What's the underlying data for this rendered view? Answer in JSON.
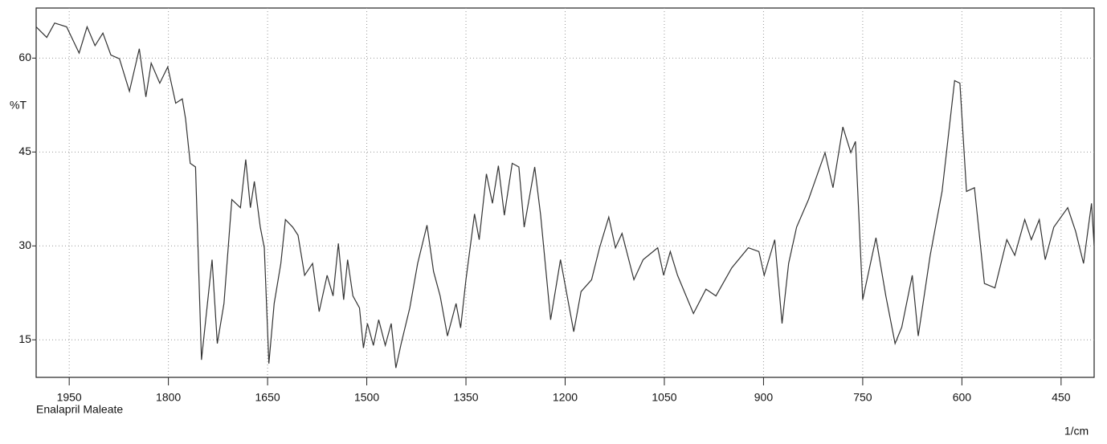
{
  "chart_data": {
    "type": "line",
    "y_label": "%T",
    "x_label": "1/cm",
    "annotation": "Enalapril Maleate",
    "x": [
      2000,
      1984,
      1972,
      1954,
      1935,
      1923,
      1911,
      1899,
      1887,
      1874,
      1859,
      1844,
      1834,
      1826,
      1813,
      1801,
      1789,
      1779,
      1774,
      1767,
      1759,
      1750,
      1734,
      1726,
      1716,
      1704,
      1691,
      1683,
      1676,
      1670,
      1661,
      1655,
      1648,
      1640,
      1630,
      1623,
      1612,
      1604,
      1594,
      1582,
      1572,
      1560,
      1551,
      1543,
      1535,
      1529,
      1521,
      1511,
      1505,
      1499,
      1490,
      1482,
      1472,
      1463,
      1456,
      1448,
      1435,
      1423,
      1409,
      1399,
      1389,
      1378,
      1365,
      1358,
      1350,
      1337,
      1330,
      1319,
      1310,
      1301,
      1292,
      1280,
      1270,
      1262,
      1246,
      1237,
      1222,
      1207,
      1187,
      1176,
      1160,
      1148,
      1134,
      1124,
      1114,
      1096,
      1082,
      1060,
      1051,
      1041,
      1030,
      1006,
      987,
      972,
      948,
      923,
      907,
      899,
      883,
      872,
      862,
      850,
      832,
      807,
      795,
      780,
      768,
      761,
      750,
      730,
      715,
      701,
      691,
      675,
      666,
      648,
      630,
      611,
      603,
      593,
      581,
      566,
      550,
      532,
      520,
      505,
      495,
      483,
      474,
      461,
      440,
      428,
      416,
      404,
      400
    ],
    "series": [
      {
        "name": "Enalapril Maleate",
        "color": "#333333",
        "values": [
          65,
          63.3,
          65.6,
          65,
          60.8,
          65,
          62,
          64,
          60.5,
          59.9,
          54.7,
          61.5,
          53.8,
          59.2,
          56,
          58.6,
          52.8,
          53.5,
          50.3,
          43.2,
          42.6,
          11.8,
          27.8,
          14.4,
          20.8,
          37.4,
          36.1,
          43.8,
          36.1,
          40.3,
          33,
          29.7,
          11.2,
          20.8,
          27.2,
          34.2,
          33,
          31.7,
          25.3,
          27.2,
          19.5,
          25.3,
          22,
          30.4,
          21.4,
          27.8,
          22,
          20.1,
          13.7,
          17.6,
          14.1,
          18.2,
          14.1,
          17.6,
          10.5,
          14.4,
          20.1,
          27.2,
          33.3,
          25.9,
          22,
          15.6,
          20.8,
          16.9,
          24.6,
          35.1,
          31,
          41.5,
          36.8,
          42.8,
          34.9,
          43.2,
          42.6,
          33,
          42.6,
          34.9,
          18.2,
          27.8,
          16.3,
          22.7,
          24.6,
          29.7,
          34.6,
          29.7,
          32,
          24.6,
          27.8,
          29.7,
          25.3,
          29.1,
          25.3,
          19.2,
          23.1,
          22,
          26.5,
          29.7,
          29.1,
          25.3,
          31,
          17.6,
          27.2,
          33,
          37.4,
          44.9,
          39.3,
          49,
          44.9,
          46.7,
          21.4,
          31.3,
          22,
          14.4,
          17,
          25.3,
          15.6,
          28.5,
          38.7,
          56.4,
          56,
          38.7,
          39.3,
          24,
          23.3,
          31,
          28.5,
          34.2,
          31,
          34.2,
          27.8,
          33,
          36.1,
          32.3,
          27.2,
          36.8,
          30
        ]
      }
    ],
    "xlim": [
      2000,
      400
    ],
    "ylim": [
      9,
      68
    ],
    "xticks": [
      1950,
      1800,
      1650,
      1500,
      1350,
      1200,
      1050,
      900,
      750,
      600,
      450
    ],
    "yticks": [
      15,
      30,
      45,
      60
    ],
    "grid": true
  }
}
